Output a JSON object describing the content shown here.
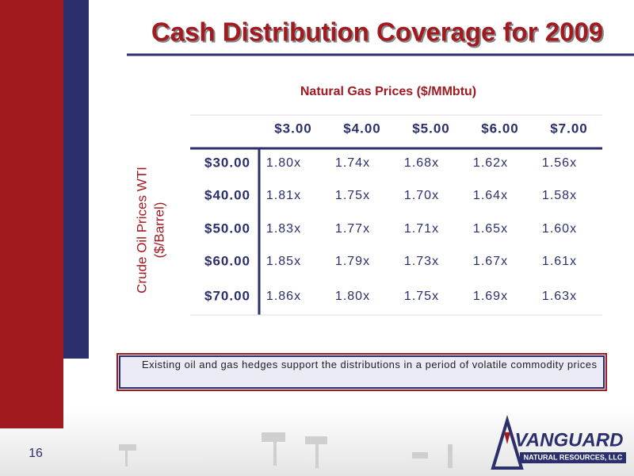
{
  "title": "Cash Distribution Coverage for 2009",
  "table": {
    "column_title": "Natural Gas Prices ($/MMbtu)",
    "row_title": [
      "Crude Oil Prices WTI",
      "($/Barrel)"
    ],
    "columns": [
      "$3.00",
      "$4.00",
      "$5.00",
      "$6.00",
      "$7.00"
    ],
    "rows": [
      {
        "label": "$30.00",
        "cells": [
          "1.80x",
          "1.74x",
          "1.68x",
          "1.62x",
          "1.56x"
        ]
      },
      {
        "label": "$40.00",
        "cells": [
          "1.81x",
          "1.75x",
          "1.70x",
          "1.64x",
          "1.58x"
        ]
      },
      {
        "label": "$50.00",
        "cells": [
          "1.83x",
          "1.77x",
          "1.71x",
          "1.65x",
          "1.60x"
        ]
      },
      {
        "label": "$60.00",
        "cells": [
          "1.85x",
          "1.79x",
          "1.73x",
          "1.67x",
          "1.61x"
        ]
      },
      {
        "label": "$70.00",
        "cells": [
          "1.86x",
          "1.80x",
          "1.75x",
          "1.69x",
          "1.63x"
        ]
      }
    ]
  },
  "note": "Existing oil and gas hedges support the distributions in a period of volatile commodity prices",
  "page_number": "16",
  "logo": {
    "name": "VANGUARD",
    "subtitle": "NATURAL RESOURCES, LLC"
  }
}
